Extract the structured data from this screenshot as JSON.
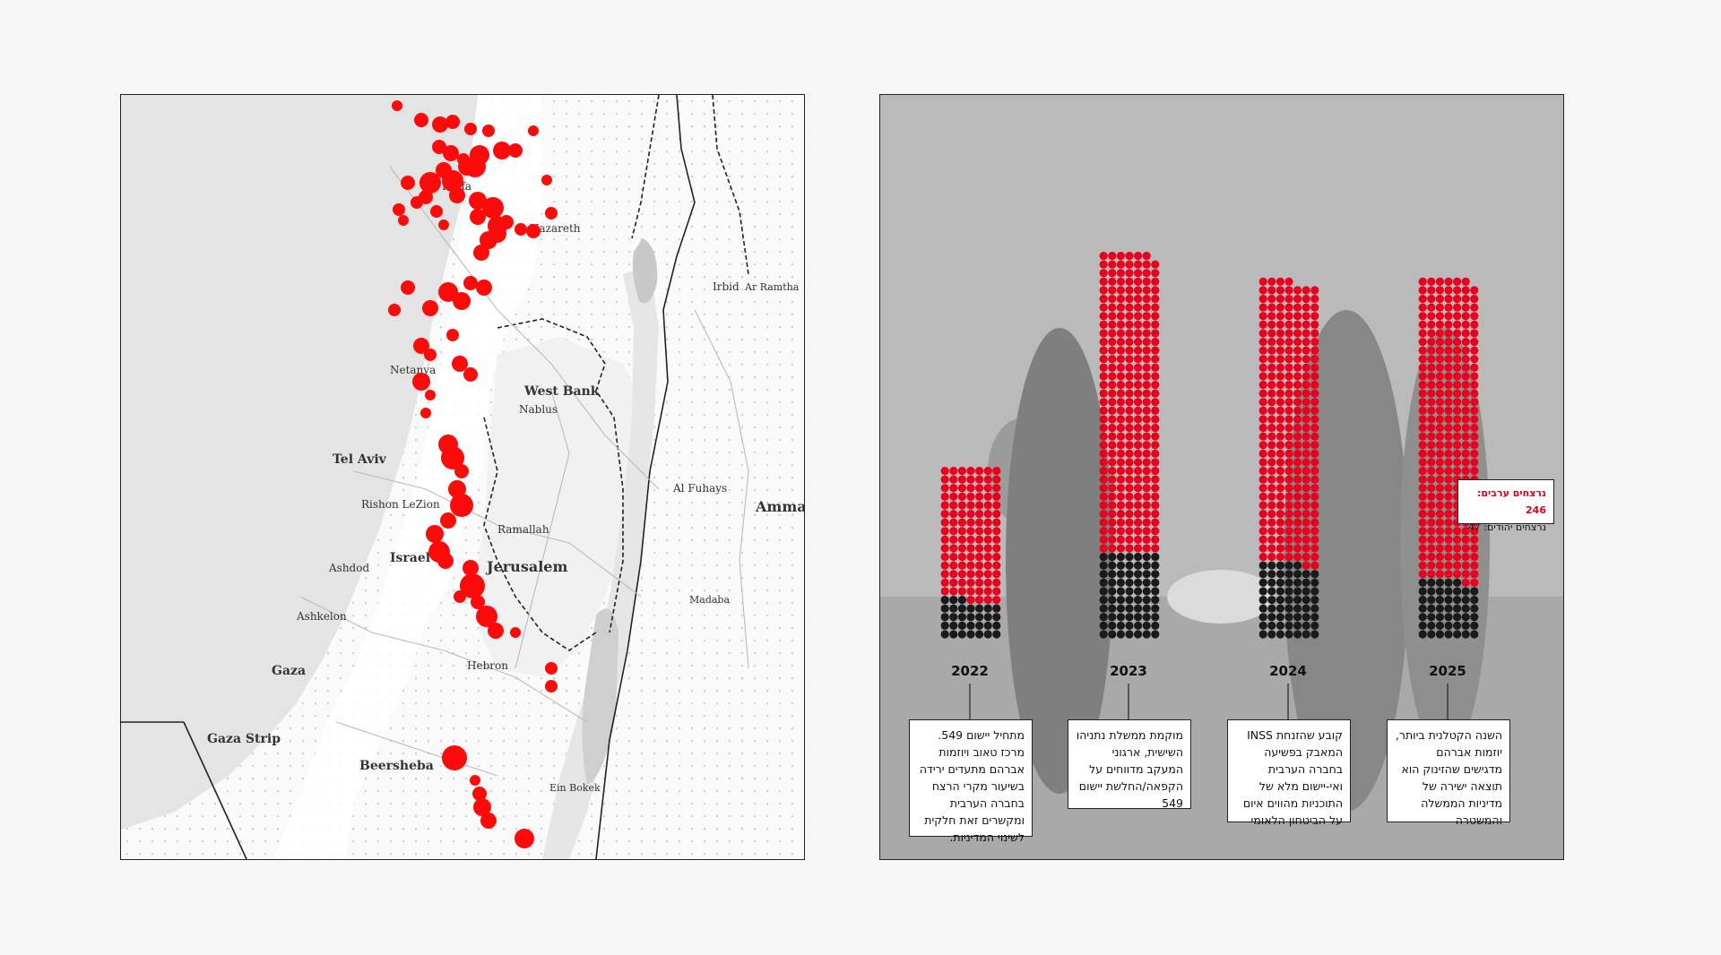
{
  "map": {
    "labels": {
      "haifa": "Haifa",
      "nazareth": "Nazareth",
      "irbid": "Irbid",
      "ar_ramtha": "Ar Ramtha",
      "netanya": "Netanya",
      "west_bank": "West Bank",
      "nablus": "Nablus",
      "tel_aviv": "Tel Aviv",
      "rishon": "Rishon LeZion",
      "al_fuhays": "Al Fuhays",
      "amman": "Amman",
      "ramallah": "Ramallah",
      "israel": "Israel",
      "jerusalem": "Jerusalem",
      "ashdod": "Ashdod",
      "madaba": "Madaba",
      "ashkelon": "Ashkelon",
      "gaza": "Gaza",
      "hebron": "Hebron",
      "gaza_strip": "Gaza Strip",
      "beersheba": "Beersheba",
      "ein_bokek": "Ein Bokek"
    },
    "marker_color": "#ff0a0a"
  },
  "chart_data": {
    "type": "bar",
    "categories": [
      "2022",
      "2023",
      "2024",
      "2025"
    ],
    "series": [
      {
        "name": "נרצחים ערבים",
        "values": [
          109,
          244,
          230,
          246
        ]
      },
      {
        "name": "נרצחים יהודים",
        "values": [
          31,
          70,
          61,
          47
        ]
      }
    ],
    "colors": {
      "arab": "#e8001c",
      "jewish": "#1a1a1a"
    },
    "legend": {
      "arab_label": "נרצחים ערבים:",
      "arab_value": "246",
      "jewish_label": "נרצחים יהודים:",
      "jewish_value": "47"
    },
    "callouts": [
      "מתחיל יישום 549. מרכז טאוב ויוזמות אברהם מתעדים ירידה בשיעור מקרי הרצח בחברה הערבית ומקשרים זאת חלקית לשינוי המדיניות.",
      "מוקמת ממשלת נתניהו השישית, ארגוני המעקב מדווחים על הקפאה/החלשת יישום 549",
      "קובע שהזנחת INSS המאבק בפשיעה בחברה הערבית ואי-יישום מלא של התוכניות מהווים איום על הביטחון הלאומי",
      "השנה הקטלנית ביותר, יוזמות אברהם מדגישים שהזינוק הוא תוצאה ישירה של מדיניות הממשלה והמשטרה"
    ]
  }
}
